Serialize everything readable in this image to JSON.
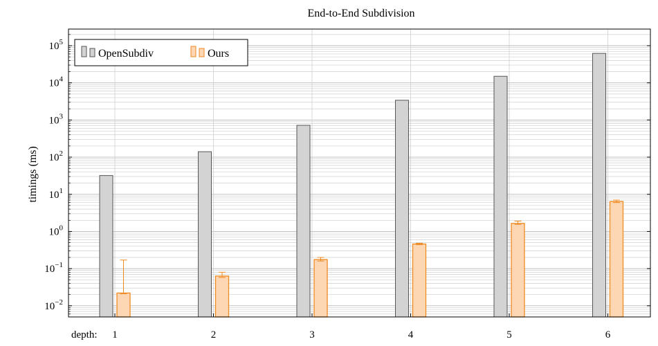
{
  "chart_data": {
    "type": "bar",
    "title": "End-to-End Subdivision",
    "ylabel": "timings (ms)",
    "xlabel_prefix": "depth:",
    "yscale": "log",
    "ylim": [
      0.005,
      280000
    ],
    "y_ticks": [
      {
        "value": 0.01,
        "base": "10",
        "exp": "−2"
      },
      {
        "value": 0.1,
        "base": "10",
        "exp": "−1"
      },
      {
        "value": 1,
        "base": "10",
        "exp": "0"
      },
      {
        "value": 10,
        "base": "10",
        "exp": "1"
      },
      {
        "value": 100,
        "base": "10",
        "exp": "2"
      },
      {
        "value": 1000,
        "base": "10",
        "exp": "3"
      },
      {
        "value": 10000,
        "base": "10",
        "exp": "4"
      },
      {
        "value": 100000,
        "base": "10",
        "exp": "5"
      }
    ],
    "categories": [
      "1",
      "2",
      "3",
      "4",
      "5",
      "6"
    ],
    "grid": true,
    "legend_position": "top-left",
    "series": [
      {
        "name": "OpenSubdiv",
        "fill": "#d3d3d3",
        "stroke": "#555555",
        "values": [
          32,
          140,
          720,
          3400,
          15000,
          62000
        ]
      },
      {
        "name": "Ours",
        "fill": "#fdd7b4",
        "stroke": "#ee8a22",
        "values": [
          0.022,
          0.063,
          0.175,
          0.46,
          1.65,
          6.4
        ],
        "error_high": [
          0.17,
          0.08,
          0.2,
          0.48,
          1.9,
          7.0
        ],
        "error_low": [
          0.021,
          0.058,
          0.16,
          0.44,
          1.55,
          6.0
        ]
      }
    ]
  }
}
